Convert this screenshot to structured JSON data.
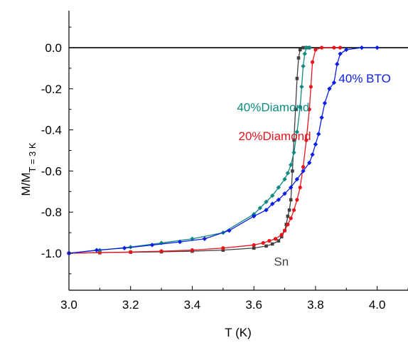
{
  "chart_data": {
    "type": "line",
    "title": "",
    "xlabel": "T (K)",
    "ylabel_main": "M/M",
    "ylabel_sub": "T = 3 K",
    "xlim": [
      3.0,
      4.1
    ],
    "ylim": [
      -1.18,
      0.18
    ],
    "xticks": [
      3.0,
      3.2,
      3.4,
      3.6,
      3.8,
      4.0
    ],
    "xtick_labels": [
      "3.0",
      "3.2",
      "3.4",
      "3.6",
      "3.8",
      "4.0"
    ],
    "yticks": [
      0.0,
      -0.2,
      -0.4,
      -0.6,
      -0.8,
      -1.0
    ],
    "ytick_labels": [
      "0.0",
      "-0.2",
      "-0.4",
      "-0.6",
      "-0.8",
      "-1.0"
    ],
    "grid": false,
    "legend": "inline annotations",
    "series": [
      {
        "name": "Sn",
        "color": "#404040",
        "marker": "square",
        "points": [
          [
            3.0,
            -1.0
          ],
          [
            3.1,
            -0.997
          ],
          [
            3.2,
            -0.995
          ],
          [
            3.3,
            -0.993
          ],
          [
            3.4,
            -0.99
          ],
          [
            3.5,
            -0.985
          ],
          [
            3.6,
            -0.975
          ],
          [
            3.64,
            -0.965
          ],
          [
            3.66,
            -0.955
          ],
          [
            3.68,
            -0.94
          ],
          [
            3.69,
            -0.92
          ],
          [
            3.7,
            -0.89
          ],
          [
            3.705,
            -0.86
          ],
          [
            3.71,
            -0.82
          ],
          [
            3.715,
            -0.79
          ],
          [
            3.72,
            -0.74
          ],
          [
            3.725,
            -0.6
          ],
          [
            3.73,
            -0.45
          ],
          [
            3.735,
            -0.3
          ],
          [
            3.74,
            -0.15
          ],
          [
            3.745,
            -0.05
          ],
          [
            3.75,
            -0.01
          ],
          [
            3.76,
            0.0
          ],
          [
            3.77,
            0.0
          ],
          [
            3.78,
            0.0
          ]
        ]
      },
      {
        "name": "20%Diamond",
        "color": "#e8141c",
        "marker": "circle",
        "points": [
          [
            3.0,
            -1.0
          ],
          [
            3.1,
            -0.997
          ],
          [
            3.2,
            -0.994
          ],
          [
            3.3,
            -0.99
          ],
          [
            3.4,
            -0.985
          ],
          [
            3.5,
            -0.975
          ],
          [
            3.6,
            -0.96
          ],
          [
            3.63,
            -0.95
          ],
          [
            3.65,
            -0.94
          ],
          [
            3.67,
            -0.93
          ],
          [
            3.69,
            -0.91
          ],
          [
            3.7,
            -0.89
          ],
          [
            3.71,
            -0.86
          ],
          [
            3.72,
            -0.83
          ],
          [
            3.73,
            -0.79
          ],
          [
            3.74,
            -0.74
          ],
          [
            3.75,
            -0.68
          ],
          [
            3.76,
            -0.58
          ],
          [
            3.77,
            -0.45
          ],
          [
            3.78,
            -0.3
          ],
          [
            3.785,
            -0.19
          ],
          [
            3.79,
            -0.07
          ],
          [
            3.8,
            -0.01
          ],
          [
            3.82,
            0.0
          ],
          [
            3.86,
            0.0
          ],
          [
            3.88,
            0.0
          ]
        ]
      },
      {
        "name": "40%Diamond",
        "color": "#0e8a80",
        "marker": "diamond",
        "points": [
          [
            3.0,
            -1.0
          ],
          [
            3.1,
            -0.985
          ],
          [
            3.2,
            -0.97
          ],
          [
            3.3,
            -0.95
          ],
          [
            3.4,
            -0.93
          ],
          [
            3.5,
            -0.9
          ],
          [
            3.6,
            -0.81
          ],
          [
            3.62,
            -0.78
          ],
          [
            3.64,
            -0.75
          ],
          [
            3.66,
            -0.72
          ],
          [
            3.68,
            -0.68
          ],
          [
            3.7,
            -0.64
          ],
          [
            3.71,
            -0.61
          ],
          [
            3.72,
            -0.57
          ],
          [
            3.73,
            -0.51
          ],
          [
            3.74,
            -0.41
          ],
          [
            3.75,
            -0.29
          ],
          [
            3.755,
            -0.19
          ],
          [
            3.76,
            -0.09
          ],
          [
            3.765,
            -0.03
          ],
          [
            3.77,
            0.0
          ],
          [
            3.78,
            0.0
          ]
        ]
      },
      {
        "name": "40% BTO",
        "color": "#0a1ee6",
        "marker": "diamond",
        "points": [
          [
            3.0,
            -1.0
          ],
          [
            3.09,
            -0.985
          ],
          [
            3.18,
            -0.975
          ],
          [
            3.27,
            -0.96
          ],
          [
            3.36,
            -0.945
          ],
          [
            3.44,
            -0.93
          ],
          [
            3.52,
            -0.89
          ],
          [
            3.6,
            -0.82
          ],
          [
            3.64,
            -0.79
          ],
          [
            3.66,
            -0.76
          ],
          [
            3.68,
            -0.74
          ],
          [
            3.7,
            -0.71
          ],
          [
            3.72,
            -0.68
          ],
          [
            3.74,
            -0.64
          ],
          [
            3.76,
            -0.6
          ],
          [
            3.78,
            -0.56
          ],
          [
            3.79,
            -0.52
          ],
          [
            3.8,
            -0.47
          ],
          [
            3.81,
            -0.42
          ],
          [
            3.82,
            -0.34
          ],
          [
            3.83,
            -0.27
          ],
          [
            3.845,
            -0.2
          ],
          [
            3.86,
            -0.17
          ],
          [
            3.87,
            -0.08
          ],
          [
            3.88,
            -0.03
          ],
          [
            3.9,
            -0.01
          ],
          [
            3.95,
            0.0
          ],
          [
            4.0,
            0.0
          ]
        ]
      }
    ],
    "annotations": [
      {
        "text": "40%Diamond",
        "x": 3.545,
        "y": -0.31,
        "color": "#0e8a80"
      },
      {
        "text": "20%Diamond",
        "x": 3.55,
        "y": -0.45,
        "color": "#e8141c"
      },
      {
        "text": "40% BTO",
        "x": 3.875,
        "y": -0.17,
        "color": "#0a1ee6"
      },
      {
        "text": "Sn",
        "x": 3.665,
        "y": -1.06,
        "color": "#404040"
      }
    ]
  }
}
